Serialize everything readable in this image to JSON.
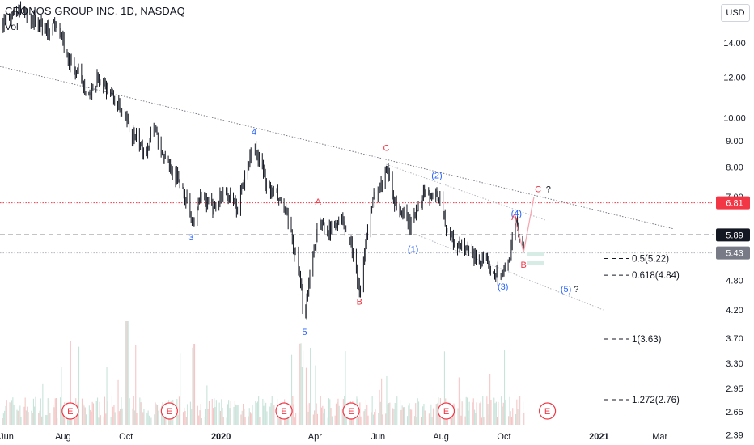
{
  "header": {
    "title": "CRONOS GROUP INC, 1D, NASDAQ",
    "volume_label": "Vol",
    "currency_button": "USD"
  },
  "chart_data": {
    "type": "candlestick",
    "title": "CRONOS GROUP INC, 1D, NASDAQ",
    "y_scale": "log",
    "ylim": [
      2.3,
      17
    ],
    "y_ticks": [
      "14.00",
      "12.00",
      "10.00",
      "9.00",
      "8.00",
      "7.00",
      "5.89",
      "4.80",
      "4.20",
      "3.70",
      "3.30",
      "2.95",
      "2.65",
      "2.39"
    ],
    "x_range": [
      "2019-06-01",
      "2021-03-20"
    ],
    "x_ticks": [
      {
        "label": "Jun",
        "date": "2019-06-01"
      },
      {
        "label": "Aug",
        "date": "2019-08-01"
      },
      {
        "label": "Oct",
        "date": "2019-10-01"
      },
      {
        "label": "2020",
        "date": "2020-01-01",
        "bold": true
      },
      {
        "label": "Apr",
        "date": "2020-04-01"
      },
      {
        "label": "Jun",
        "date": "2020-06-01"
      },
      {
        "label": "Aug",
        "date": "2020-08-01"
      },
      {
        "label": "Oct",
        "date": "2020-10-01"
      },
      {
        "label": "2021",
        "date": "2021-01-01",
        "bold": true
      },
      {
        "label": "Mar",
        "date": "2021-03-01"
      }
    ],
    "price_path": [
      [
        "2019-06-03",
        15.2
      ],
      [
        "2019-06-20",
        16.3
      ],
      [
        "2019-07-05",
        15.4
      ],
      [
        "2019-07-18",
        14.8
      ],
      [
        "2019-07-26",
        15.5
      ],
      [
        "2019-08-05",
        13.0
      ],
      [
        "2019-08-15",
        12.2
      ],
      [
        "2019-08-28",
        11.0
      ],
      [
        "2019-09-05",
        12.0
      ],
      [
        "2019-09-18",
        11.0
      ],
      [
        "2019-09-26",
        10.3
      ],
      [
        "2019-10-08",
        9.2
      ],
      [
        "2019-10-20",
        8.5
      ],
      [
        "2019-10-28",
        9.8
      ],
      [
        "2019-11-05",
        8.4
      ],
      [
        "2019-11-15",
        7.9
      ],
      [
        "2019-11-26",
        7.2
      ],
      [
        "2019-12-05",
        6.2
      ],
      [
        "2019-12-12",
        6.9
      ],
      [
        "2019-12-24",
        6.7
      ],
      [
        "2020-01-05",
        7.2
      ],
      [
        "2020-01-16",
        6.6
      ],
      [
        "2020-01-28",
        8.2
      ],
      [
        "2020-02-02",
        8.8
      ],
      [
        "2020-02-08",
        8.1
      ],
      [
        "2020-02-16",
        7.2
      ],
      [
        "2020-02-24",
        7.0
      ],
      [
        "2020-03-03",
        6.6
      ],
      [
        "2020-03-10",
        5.7
      ],
      [
        "2020-03-17",
        4.8
      ],
      [
        "2020-03-22",
        4.05
      ],
      [
        "2020-03-27",
        5.0
      ],
      [
        "2020-04-04",
        6.2
      ],
      [
        "2020-04-16",
        6.0
      ],
      [
        "2020-04-26",
        6.4
      ],
      [
        "2020-05-06",
        5.6
      ],
      [
        "2020-05-14",
        4.6
      ],
      [
        "2020-05-21",
        5.8
      ],
      [
        "2020-05-28",
        7.0
      ],
      [
        "2020-06-04",
        7.4
      ],
      [
        "2020-06-09",
        8.2
      ],
      [
        "2020-06-16",
        6.9
      ],
      [
        "2020-06-26",
        6.4
      ],
      [
        "2020-07-03",
        6.1
      ],
      [
        "2020-07-10",
        6.8
      ],
      [
        "2020-07-17",
        7.2
      ],
      [
        "2020-07-24",
        6.9
      ],
      [
        "2020-07-30",
        7.1
      ],
      [
        "2020-08-05",
        6.2
      ],
      [
        "2020-08-15",
        5.6
      ],
      [
        "2020-08-28",
        5.5
      ],
      [
        "2020-09-10",
        5.2
      ],
      [
        "2020-09-22",
        5.0
      ],
      [
        "2020-09-30",
        4.95
      ],
      [
        "2020-10-06",
        5.2
      ],
      [
        "2020-10-11",
        6.4
      ],
      [
        "2020-10-15",
        5.9
      ],
      [
        "2020-10-20",
        5.43
      ]
    ],
    "horizontal_levels": [
      {
        "price": 6.81,
        "label": "6.81",
        "style": "dotted",
        "color": "#f23645",
        "badge_bg": "#f23645",
        "badge_fg": "#ffffff"
      },
      {
        "price": 5.89,
        "label": "5.89",
        "style": "dashed",
        "color": "#131722",
        "badge_bg": "#131722",
        "badge_fg": "#ffffff"
      },
      {
        "price": 5.43,
        "label": "5.43",
        "style": "dotted",
        "color": "#b2b5be",
        "badge_bg": "#787b86",
        "badge_fg": "#ffffff"
      }
    ],
    "trendlines": [
      {
        "from": [
          "2019-06-01",
          12.6
        ],
        "to": [
          "2021-03-15",
          6.05
        ],
        "style": "dotted",
        "color": "#787b86"
      },
      {
        "from": [
          "2020-06-09",
          8.1
        ],
        "to": [
          "2020-11-10",
          6.3
        ],
        "style": "dotted",
        "color": "#b2b5be"
      },
      {
        "from": [
          "2020-07-08",
          5.9
        ],
        "to": [
          "2021-01-05",
          4.2
        ],
        "style": "dotted",
        "color": "#b2b5be"
      }
    ],
    "projection": [
      [
        "2020-10-11",
        6.4
      ],
      [
        "2020-10-20",
        5.45
      ],
      [
        "2020-10-30",
        7.0
      ]
    ],
    "wave_labels": [
      {
        "text": "4",
        "date": "2020-02-02",
        "price": 9.25,
        "color": "#2962ff"
      },
      {
        "text": "3",
        "date": "2019-12-03",
        "price": 5.75,
        "color": "#2962ff"
      },
      {
        "text": "5",
        "date": "2020-03-22",
        "price": 3.75,
        "color": "#2962ff"
      },
      {
        "text": "A",
        "date": "2020-04-04",
        "price": 6.75,
        "color": "#f23645"
      },
      {
        "text": "B",
        "date": "2020-05-14",
        "price": 4.3,
        "color": "#f23645"
      },
      {
        "text": "C",
        "date": "2020-06-09",
        "price": 8.6,
        "color": "#f23645"
      },
      {
        "text": "(1)",
        "date": "2020-07-05",
        "price": 5.45,
        "color": "#2962ff"
      },
      {
        "text": "(2)",
        "date": "2020-07-28",
        "price": 7.6,
        "color": "#2962ff"
      },
      {
        "text": "(3)",
        "date": "2020-09-30",
        "price": 4.6,
        "color": "#2962ff"
      },
      {
        "text": "(4)",
        "date": "2020-10-13",
        "price": 6.4,
        "color": "#2962ff"
      },
      {
        "text": "A",
        "date": "2020-10-11",
        "price": 6.3,
        "color": "#f23645"
      },
      {
        "text": "B",
        "date": "2020-10-20",
        "price": 5.08,
        "color": "#f23645"
      },
      {
        "text": "C",
        "date": "2020-11-03",
        "price": 7.15,
        "color": "#f23645"
      },
      {
        "text": "?",
        "date": "2020-11-13",
        "price": 7.15,
        "color": "#131722"
      },
      {
        "text": "(5)",
        "date": "2020-11-30",
        "price": 4.55,
        "color": "#2962ff"
      },
      {
        "text": "?",
        "date": "2020-12-10",
        "price": 4.55,
        "color": "#131722"
      }
    ],
    "fib_levels": [
      {
        "label": "0.5(5.22)",
        "price": 5.22
      },
      {
        "label": "0.618(4.84)",
        "price": 4.84
      },
      {
        "label": "1(3.63)",
        "price": 3.63
      },
      {
        "label": "1.272(2.76)",
        "price": 2.76
      }
    ],
    "earnings_markers": [
      {
        "text": "E",
        "date": "2019-08-08"
      },
      {
        "text": "E",
        "date": "2019-11-12"
      },
      {
        "text": "E",
        "date": "2020-03-02"
      },
      {
        "text": "E",
        "date": "2020-05-06"
      },
      {
        "text": "E",
        "date": "2020-08-06"
      },
      {
        "text": "E",
        "date": "2020-11-12"
      }
    ],
    "colors": {
      "bars": "#131722",
      "volume_up": "#c7e3da",
      "volume_down": "#f5c6c6",
      "axis_text": "#131722",
      "grid": "#f0f3fa"
    }
  }
}
